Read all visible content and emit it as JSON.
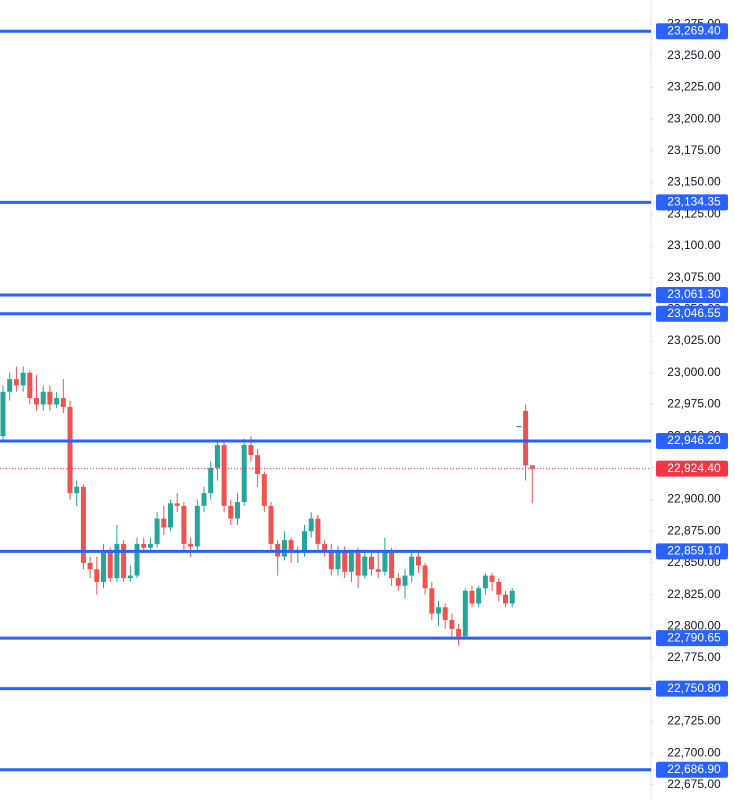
{
  "chart_data": {
    "type": "candlestick",
    "ylim": [
      22663,
      23294
    ],
    "yticks": [
      {
        "value": 22675,
        "label": "22,675.00"
      },
      {
        "value": 22700,
        "label": "22,700.00"
      },
      {
        "value": 22725,
        "label": "22,725.00"
      },
      {
        "value": 22750,
        "label": "22,750.00"
      },
      {
        "value": 22775,
        "label": "22,775.00"
      },
      {
        "value": 22800,
        "label": "22,800.00"
      },
      {
        "value": 22825,
        "label": "22,825.00"
      },
      {
        "value": 22850,
        "label": "22,850.00"
      },
      {
        "value": 22875,
        "label": "22,875.00"
      },
      {
        "value": 22900,
        "label": "22,900.00"
      },
      {
        "value": 22925,
        "label": "22,925.00"
      },
      {
        "value": 22950,
        "label": "22,950.00"
      },
      {
        "value": 22975,
        "label": "22,975.00"
      },
      {
        "value": 23000,
        "label": "23,000.00"
      },
      {
        "value": 23025,
        "label": "23,025.00"
      },
      {
        "value": 23050,
        "label": "23,050.00"
      },
      {
        "value": 23075,
        "label": "23,075.00"
      },
      {
        "value": 23100,
        "label": "23,100.00"
      },
      {
        "value": 23125,
        "label": "23,125.00"
      },
      {
        "value": 23150,
        "label": "23,150.00"
      },
      {
        "value": 23175,
        "label": "23,175.00"
      },
      {
        "value": 23200,
        "label": "23,200.00"
      },
      {
        "value": 23225,
        "label": "23,225.00"
      },
      {
        "value": 23250,
        "label": "23,250.00"
      },
      {
        "value": 23275,
        "label": "23,275.00"
      }
    ],
    "up_color": "#26a69a",
    "down_color": "#ef5350",
    "level_color": "#2962ff",
    "levels": [
      {
        "value": 23269.4,
        "label": "23,269.40"
      },
      {
        "value": 23134.35,
        "label": "23,134.35"
      },
      {
        "value": 23061.3,
        "label": "23,061.30"
      },
      {
        "value": 23046.55,
        "label": "23,046.55"
      },
      {
        "value": 22946.2,
        "label": "22,946.20"
      },
      {
        "value": 22859.1,
        "label": "22,859.10"
      },
      {
        "value": 22790.65,
        "label": "22,790.65"
      },
      {
        "value": 22750.8,
        "label": "22,750.80"
      },
      {
        "value": 22686.9,
        "label": "22,686.90"
      }
    ],
    "last_price": {
      "value": 22924.4,
      "label": "22,924.40",
      "color": "#f23645"
    },
    "open": [
      22950,
      22985,
      22995,
      22990,
      23000,
      22980,
      22975,
      22985,
      22975,
      22980,
      22973,
      22905,
      22910,
      22850,
      22845,
      22835,
      22860,
      22838,
      22865,
      22838,
      22840,
      22865,
      22862,
      22865,
      22885,
      22878,
      22897,
      22895,
      22865,
      22863,
      22895,
      22905,
      22925,
      22943,
      22895,
      22885,
      22898,
      22943,
      22935,
      22920,
      22895,
      22865,
      22855,
      22868,
      22858,
      22860,
      22875,
      22885,
      22865,
      22860,
      22845,
      22860,
      22843,
      22858,
      22840,
      22855,
      22845,
      22843,
      22860,
      22838,
      22832,
      22840,
      22855,
      22848,
      22830,
      22810,
      22815,
      22805,
      22798,
      22792,
      22828,
      22818,
      22830,
      22840,
      22835,
      22825,
      22818,
      22958,
      22970,
      22927
    ],
    "high": [
      22990,
      23000,
      23005,
      23005,
      23002,
      22998,
      22990,
      22990,
      22985,
      22995,
      22978,
      22915,
      22912,
      22855,
      22855,
      22865,
      22862,
      22880,
      22868,
      22848,
      22870,
      22870,
      22870,
      22890,
      22895,
      22900,
      22905,
      22898,
      22870,
      22900,
      22910,
      22930,
      22945,
      22945,
      22900,
      22905,
      22948,
      22950,
      22940,
      22922,
      22898,
      22868,
      22875,
      22870,
      22863,
      22880,
      22890,
      22888,
      22868,
      22865,
      22863,
      22863,
      22860,
      22862,
      22860,
      22858,
      22860,
      22870,
      22862,
      22842,
      22845,
      22860,
      22858,
      22850,
      22835,
      22820,
      22818,
      22810,
      22802,
      22830,
      22832,
      22832,
      22842,
      22842,
      22838,
      22828,
      22830,
      22958,
      22975,
      22926
    ],
    "low": [
      22945,
      22978,
      22985,
      22985,
      22975,
      22970,
      22970,
      22970,
      22972,
      22968,
      22900,
      22895,
      22845,
      22838,
      22825,
      22830,
      22835,
      22835,
      22835,
      22835,
      22838,
      22858,
      22860,
      22862,
      22872,
      22875,
      22890,
      22860,
      22855,
      22860,
      22890,
      22900,
      22915,
      22890,
      22880,
      22880,
      22895,
      22930,
      22910,
      22890,
      22860,
      22840,
      22852,
      22850,
      22850,
      22855,
      22870,
      22860,
      22855,
      22840,
      22840,
      22838,
      22835,
      22830,
      22838,
      22840,
      22838,
      22840,
      22832,
      22828,
      22822,
      22835,
      22842,
      22825,
      22805,
      22800,
      22798,
      22790,
      22785,
      22790,
      22815,
      22815,
      22825,
      22828,
      22820,
      22815,
      22815,
      22958,
      22915,
      22897
    ],
    "close": [
      22985,
      22995,
      22990,
      23000,
      22980,
      22975,
      22985,
      22975,
      22980,
      22973,
      22905,
      22910,
      22850,
      22845,
      22835,
      22860,
      22838,
      22865,
      22838,
      22840,
      22865,
      22862,
      22865,
      22885,
      22878,
      22897,
      22895,
      22865,
      22863,
      22895,
      22905,
      22925,
      22943,
      22895,
      22885,
      22898,
      22943,
      22935,
      22920,
      22895,
      22865,
      22855,
      22868,
      22858,
      22860,
      22875,
      22885,
      22865,
      22860,
      22845,
      22860,
      22843,
      22858,
      22840,
      22855,
      22845,
      22843,
      22860,
      22838,
      22832,
      22840,
      22855,
      22848,
      22830,
      22810,
      22815,
      22805,
      22798,
      22792,
      22828,
      22818,
      22830,
      22840,
      22835,
      22825,
      22818,
      22828,
      22958,
      22927,
      22924.4
    ]
  }
}
